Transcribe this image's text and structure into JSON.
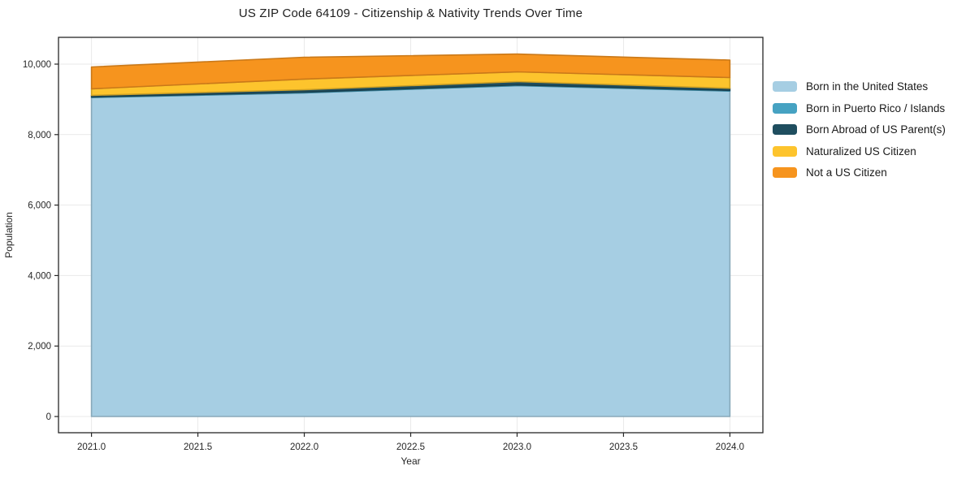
{
  "title": "US ZIP Code 64109 - Citizenship & Nativity Trends Over Time",
  "chart_data": {
    "type": "area",
    "stacked": true,
    "title": "US ZIP Code 64109 - Citizenship & Nativity Trends Over Time",
    "xlabel": "Year",
    "ylabel": "Population",
    "x": [
      2021,
      2022,
      2023,
      2024
    ],
    "series": [
      {
        "name": "Born in the United States",
        "color": "#a6cee3",
        "values": [
          9050,
          9185,
          9390,
          9235
        ]
      },
      {
        "name": "Born in Puerto Rico / Islands",
        "color": "#46a2c2",
        "values": [
          20,
          20,
          20,
          20
        ]
      },
      {
        "name": "Born Abroad of US Parent(s)",
        "color": "#1f4e5f",
        "values": [
          45,
          70,
          95,
          60
        ]
      },
      {
        "name": "Naturalized US Citizen",
        "color": "#fdc42d",
        "values": [
          185,
          300,
          275,
          305
        ]
      },
      {
        "name": "Not a US Citizen",
        "color": "#f6941e",
        "values": [
          620,
          620,
          505,
          495
        ]
      }
    ],
    "x_ticks": [
      2021.0,
      2021.5,
      2022.0,
      2022.5,
      2023.0,
      2023.5,
      2024.0
    ],
    "x_tick_labels": [
      "2021.0",
      "2021.5",
      "2022.0",
      "2022.5",
      "2023.0",
      "2023.5",
      "2024.0"
    ],
    "y_ticks": [
      0,
      2000,
      4000,
      6000,
      8000,
      10000
    ],
    "y_tick_labels": [
      "0",
      "2,000",
      "4,000",
      "6,000",
      "8,000",
      "10,000"
    ],
    "xlim": [
      2020.845,
      2024.155
    ],
    "ylim": [
      -460,
      10760
    ],
    "grid": true,
    "grid_color": "#e9e9e9",
    "axis_color": "#262626",
    "legend_position": "right"
  }
}
